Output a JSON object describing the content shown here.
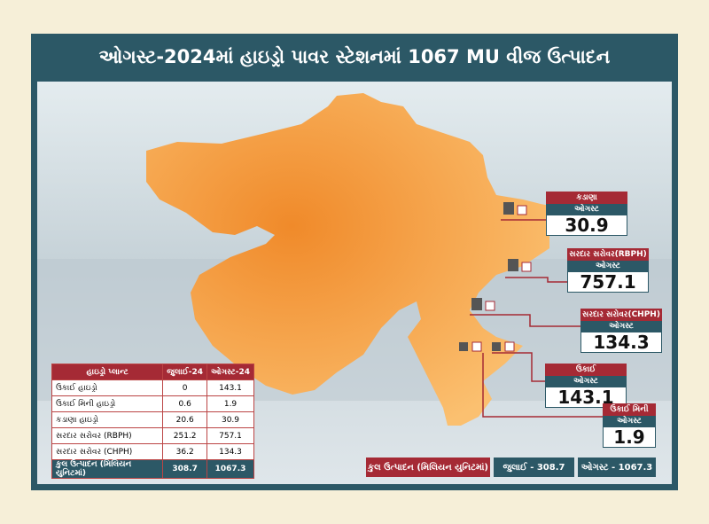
{
  "title": "ઓગસ્ટ-2024માં હાઇડ્રો પાવર સ્ટેશનમાં 1067 MU વીજ ઉત્પાદન",
  "callouts": [
    {
      "name": "કડાણા",
      "month": "ઓગસ્ટ",
      "value": 30.9
    },
    {
      "name": "સરદાર સરોવર(RBPH)",
      "month": "ઓગસ્ટ",
      "value": 757.1
    },
    {
      "name": "સરદાર સરોવર(CHPH)",
      "month": "ઓગસ્ટ",
      "value": 134.3
    },
    {
      "name": "ઉકાઈ",
      "month": "ઓગસ્ટ",
      "value": 143.1
    },
    {
      "name": "ઉકાઈ મિની",
      "month": "ઓગસ્ટ",
      "value": 1.9
    }
  ],
  "table": {
    "header": [
      "હાઇડ્રો પ્લાન્ટ",
      "જુલાઈ-24",
      "ઓગસ્ટ-24"
    ],
    "rows": [
      [
        "ઉકાઈ હાઇડ્રો",
        0,
        143.1
      ],
      [
        "ઉકાઈ મિની હાઇડ્રો",
        0.6,
        1.9
      ],
      [
        "કડાણા હાઇડ્રો",
        20.6,
        30.9
      ],
      [
        "સરદાર સરોવર (RBPH)",
        251.2,
        757.1
      ],
      [
        "સરદાર સરોવર (CHPH)",
        36.2,
        134.3
      ],
      [
        "કુલ ઉત્પાદન (મિલિયન યુનિટમાં)",
        308.7,
        1067.3
      ]
    ]
  },
  "total_bar": {
    "label": "કુલ ઉત્પાદન (મિલિયન યુનિટમાં)",
    "july": "જુલાઈ - 308.7",
    "august": "ઓગસ્ટ - 1067.3"
  }
}
